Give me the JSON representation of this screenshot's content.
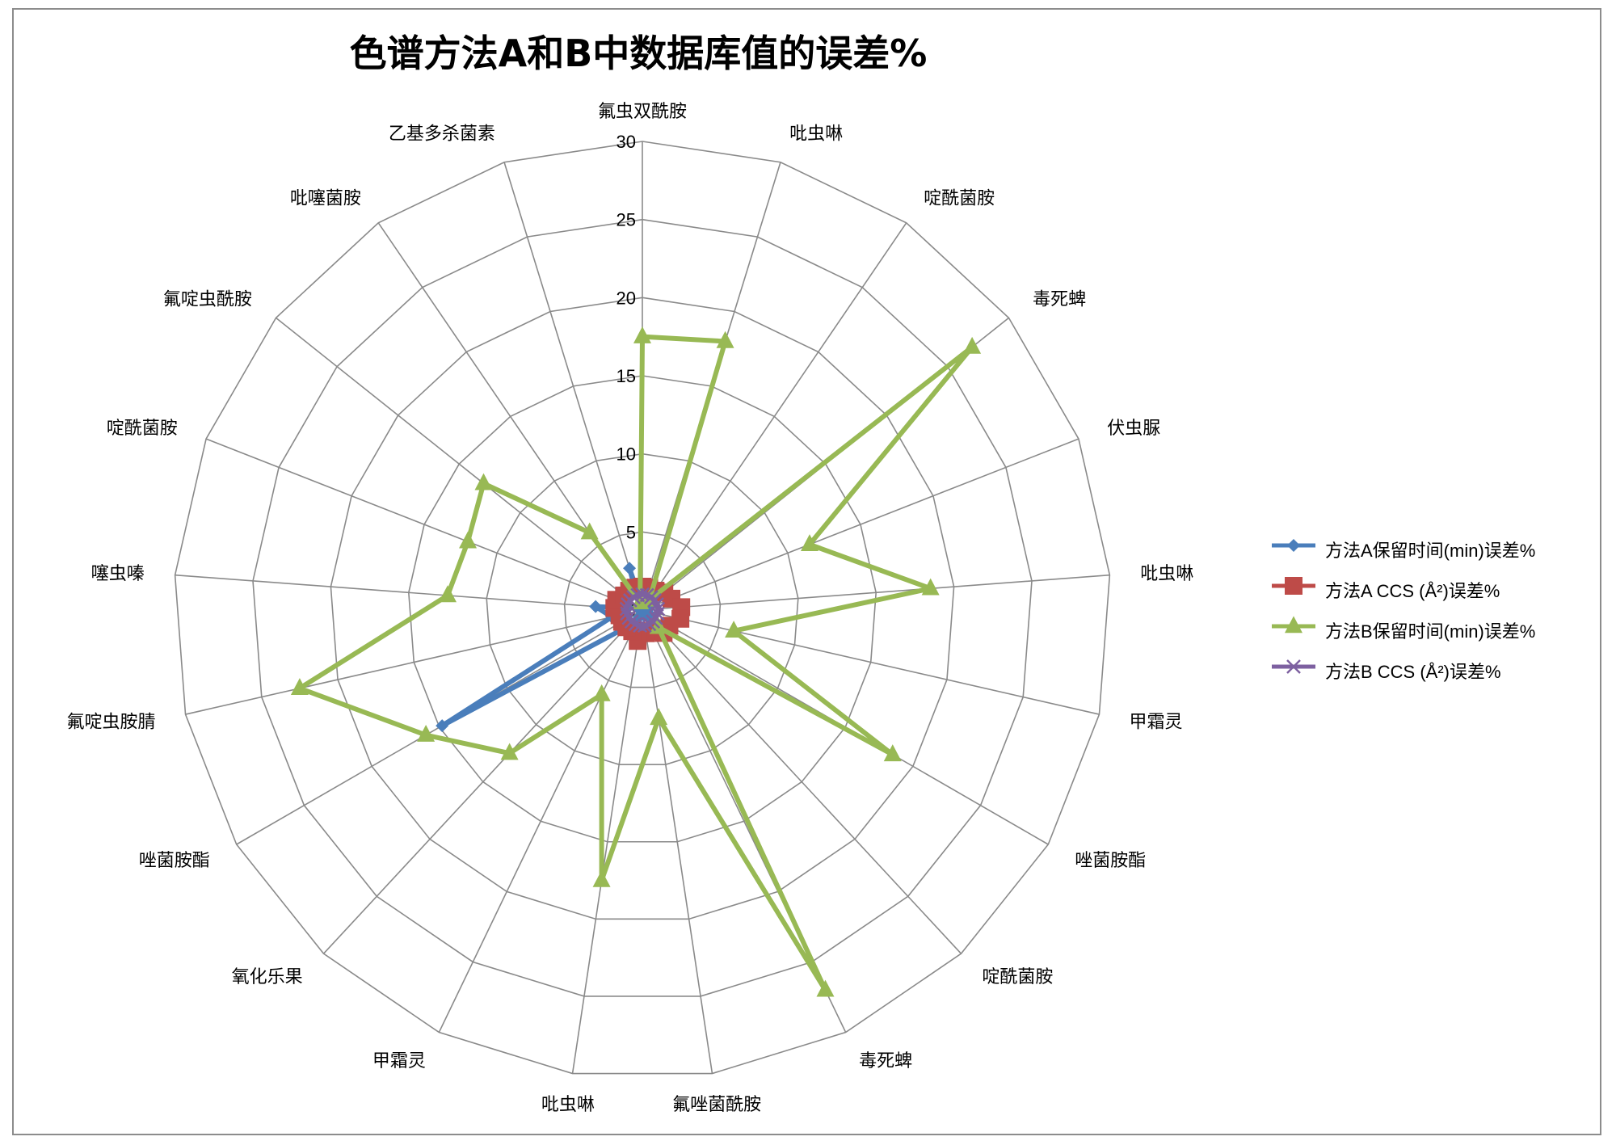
{
  "chart_data": {
    "type": "radar",
    "title": "色谱方法A和B中数据库值的误差%",
    "categories": [
      "氟虫双酰胺",
      "吡虫啉",
      "啶酰菌胺",
      "毒死蜱",
      "伏虫脲",
      "吡虫啉",
      "甲霜灵",
      "唑菌胺酯",
      "啶酰菌胺",
      "毒死蜱",
      "氟唑菌酰胺",
      "吡虫啉",
      "甲霜灵",
      "氧化乐果",
      "唑菌胺酯",
      "氟啶虫胺腈",
      "噻虫嗪",
      "啶酰菌胺",
      "氟啶虫酰胺",
      "吡噻菌胺",
      "乙基多杀菌素"
    ],
    "radial_ticks": [
      "0",
      "5",
      "10",
      "15",
      "20",
      "25",
      "30"
    ],
    "rmax": 30,
    "grid": true,
    "legend_position": "right",
    "series": [
      {
        "name": "方法A保留时间(min)误差%",
        "color": "#4a7ebb",
        "marker": "diamond",
        "values": [
          0.3,
          0.3,
          0.5,
          0.5,
          0.5,
          0.3,
          0.3,
          0.5,
          0.5,
          0.3,
          0.3,
          0.3,
          0.5,
          1.5,
          14.8,
          2.0,
          3.0,
          0.3,
          0.3,
          0.3,
          2.8
        ]
      },
      {
        "name": "方法A CCS (Å²)误差%",
        "color": "#be4b48",
        "marker": "square",
        "values": [
          1.5,
          1.5,
          1.5,
          1.8,
          2.0,
          2.5,
          2.5,
          2.0,
          2.0,
          1.5,
          1.5,
          2.0,
          1.5,
          1.5,
          1.5,
          1.5,
          1.8,
          1.8,
          1.5,
          1.5,
          1.5
        ]
      },
      {
        "name": "方法B保留时间(min)误差%",
        "color": "#98b954",
        "marker": "triangle",
        "values": [
          17.5,
          18.0,
          0.8,
          27.0,
          11.5,
          18.5,
          6.0,
          18.5,
          1.5,
          27.0,
          7.0,
          17.5,
          6.0,
          12.5,
          16.0,
          22.5,
          12.5,
          12.0,
          13.0,
          6.0,
          0.5
        ]
      },
      {
        "name": "方法B CCS (Å²)误差%",
        "color": "#7d60a0",
        "marker": "x",
        "values": [
          1.0,
          1.0,
          1.0,
          1.0,
          1.0,
          1.0,
          1.0,
          1.0,
          1.0,
          1.0,
          1.0,
          1.0,
          1.0,
          1.0,
          1.0,
          1.0,
          1.0,
          1.0,
          1.0,
          1.0,
          1.0
        ]
      }
    ]
  }
}
